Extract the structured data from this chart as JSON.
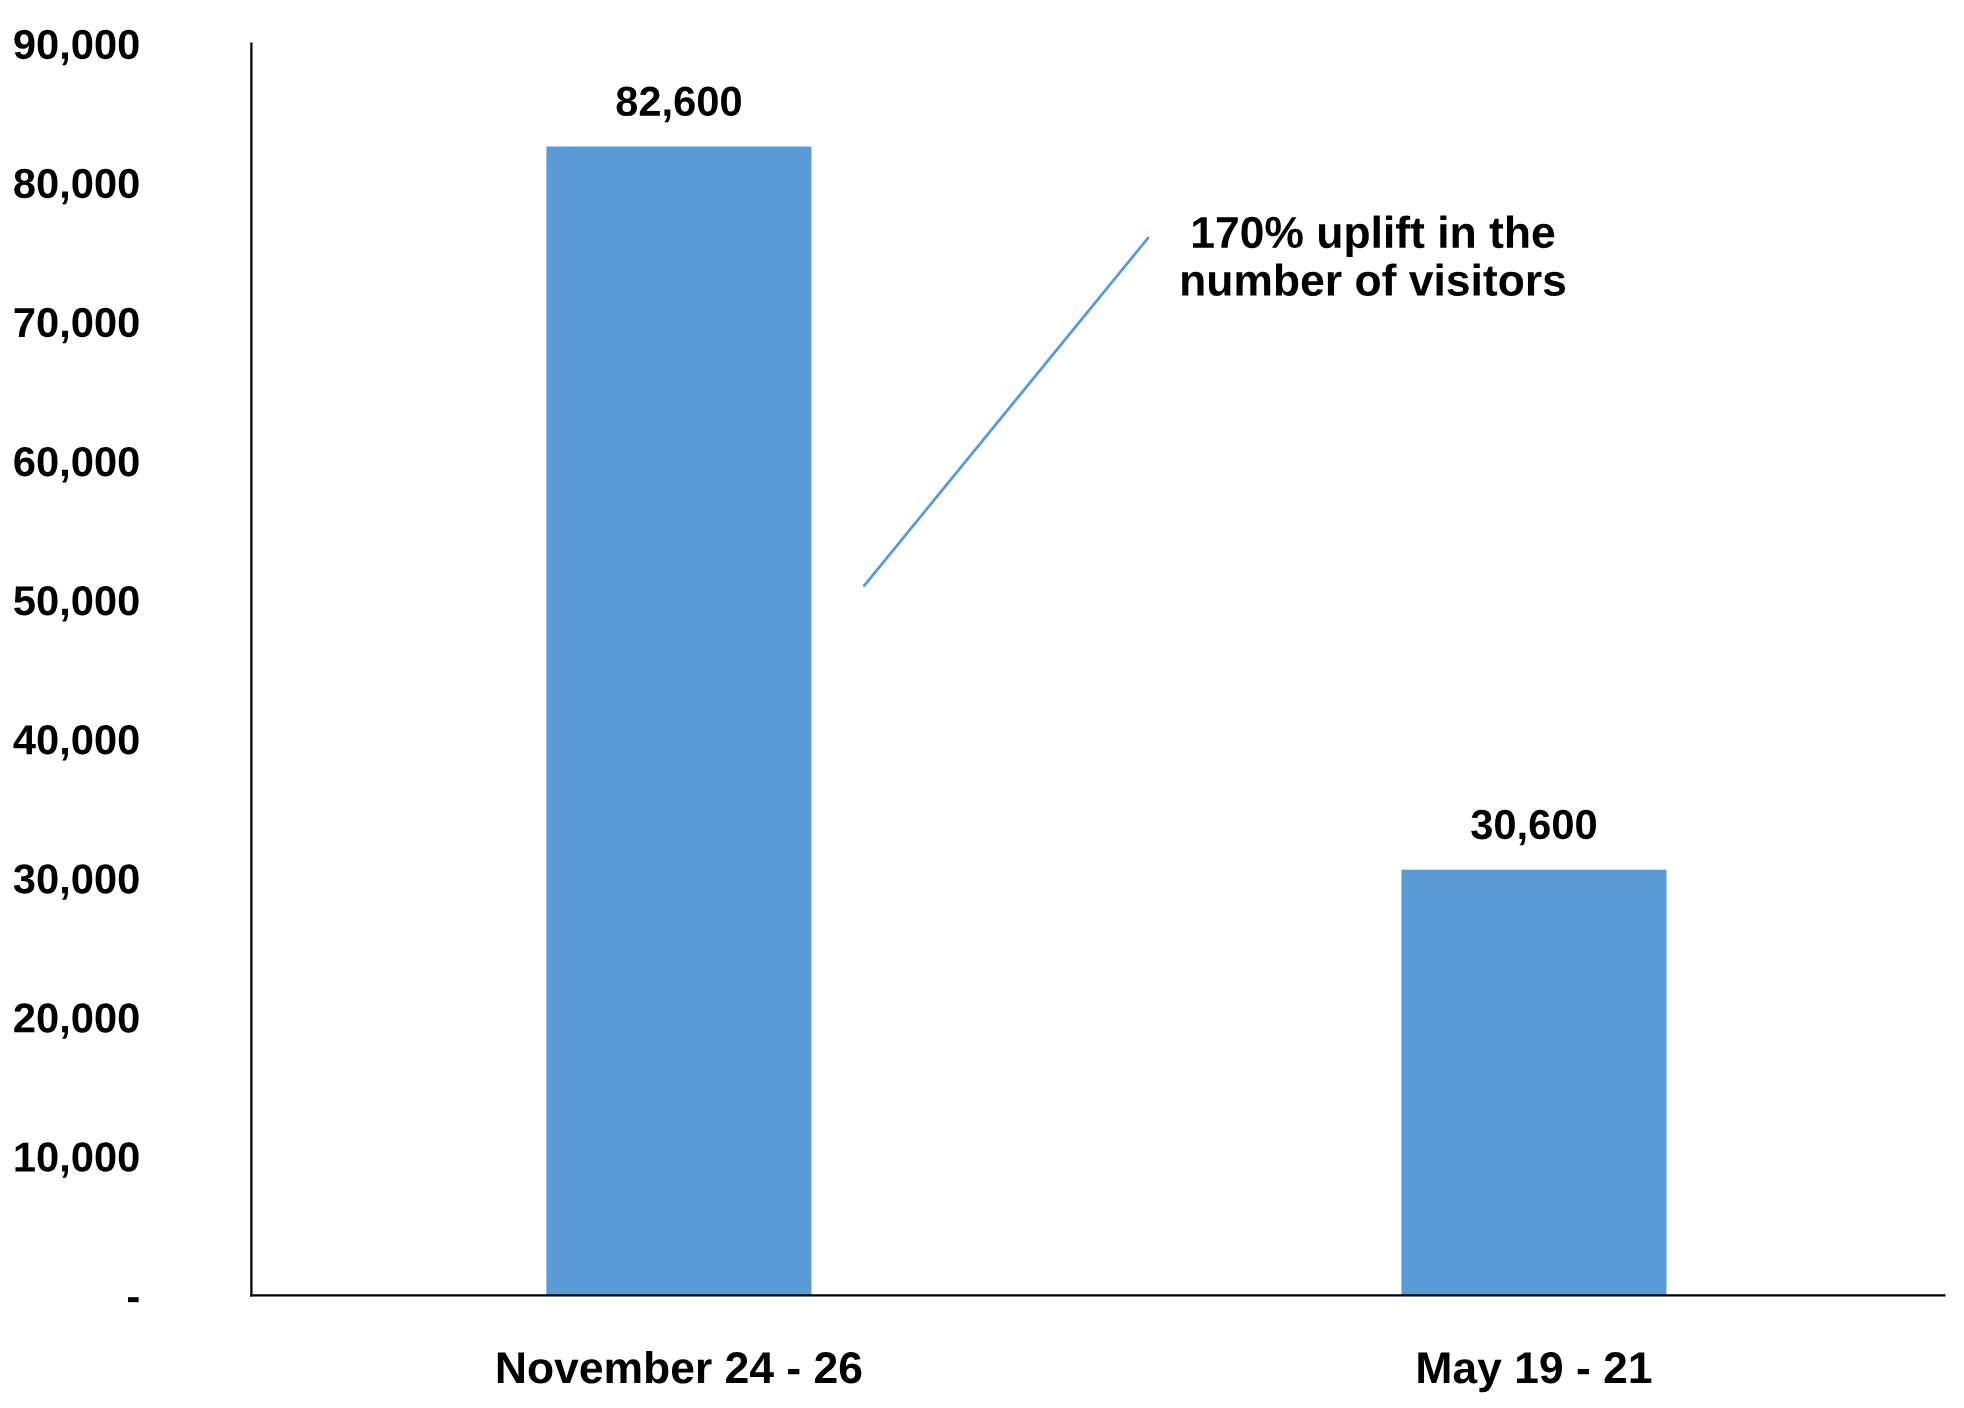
{
  "chart_data": {
    "type": "bar",
    "categories": [
      "November 24 - 26",
      "May 19 - 21"
    ],
    "values": [
      82600,
      30600
    ],
    "color": "#5b9bd5",
    "value_labels": [
      "82,600",
      "30,600"
    ],
    "ylim": [
      0,
      90000
    ],
    "yticks": [
      {
        "value": 0,
        "label": "-"
      },
      {
        "value": 10000,
        "label": "10,000"
      },
      {
        "value": 20000,
        "label": "20,000"
      },
      {
        "value": 30000,
        "label": "30,000"
      },
      {
        "value": 40000,
        "label": "40,000"
      },
      {
        "value": 50000,
        "label": "50,000"
      },
      {
        "value": 60000,
        "label": "60,000"
      },
      {
        "value": 70000,
        "label": "70,000"
      },
      {
        "value": 80000,
        "label": "80,000"
      },
      {
        "value": 90000,
        "label": "90,000"
      }
    ],
    "annotations": [
      "170% uplift in the\nnumber of visitors"
    ],
    "grid": false,
    "legend": false
  }
}
